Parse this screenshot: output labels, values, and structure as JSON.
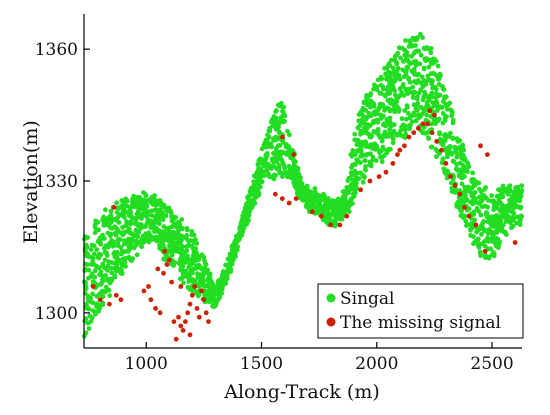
{
  "chart_data": {
    "type": "scatter",
    "title": "",
    "xlabel": "Along-Track (m)",
    "ylabel": "Elevation(m)",
    "xlim": [
      730,
      2630
    ],
    "ylim": [
      1292,
      1368
    ],
    "xticks": [
      1000,
      1500,
      2000,
      2500
    ],
    "yticks": [
      1300,
      1330,
      1360
    ],
    "xtick_labels": [
      "1000",
      "1500",
      "2000",
      "2500"
    ],
    "ytick_labels": [
      "1300",
      "1330",
      "1360"
    ],
    "grid": false,
    "legend": {
      "placement": "bottom-right",
      "entries": [
        {
          "label": "Singal",
          "color": "#22dd22"
        },
        {
          "label": "The missing signal",
          "color": "#cc2200"
        }
      ]
    },
    "series": [
      {
        "name": "Singal",
        "color": "#22dd22",
        "profile": {
          "x": [
            730,
            760,
            800,
            850,
            900,
            950,
            1000,
            1050,
            1100,
            1150,
            1200,
            1250,
            1290,
            1320,
            1360,
            1400,
            1440,
            1480,
            1500,
            1530,
            1560,
            1590,
            1620,
            1650,
            1680,
            1720,
            1760,
            1800,
            1840,
            1870,
            1900,
            1930,
            1960,
            2000,
            2040,
            2080,
            2120,
            2160,
            2200,
            2240,
            2280,
            2320,
            2360,
            2400,
            2440,
            2480,
            2520,
            2560,
            2600,
            2630
          ],
          "low": [
            1295,
            1297,
            1301,
            1305,
            1309,
            1313,
            1316,
            1315,
            1311,
            1307,
            1305,
            1303,
            1300,
            1304,
            1309,
            1315,
            1321,
            1326,
            1328,
            1331,
            1330,
            1331,
            1330,
            1328,
            1325,
            1323,
            1322,
            1320,
            1321,
            1322,
            1326,
            1329,
            1332,
            1333,
            1336,
            1339,
            1340,
            1343,
            1341,
            1337,
            1333,
            1328,
            1323,
            1318,
            1314,
            1311,
            1314,
            1318,
            1320,
            1320
          ],
          "high": [
            1318,
            1320,
            1322,
            1325,
            1326,
            1327,
            1327,
            1326,
            1324,
            1321,
            1318,
            1313,
            1306,
            1308,
            1313,
            1319,
            1326,
            1333,
            1337,
            1342,
            1347,
            1348,
            1341,
            1334,
            1330,
            1328,
            1327,
            1325,
            1326,
            1329,
            1340,
            1347,
            1350,
            1353,
            1356,
            1359,
            1362,
            1364,
            1363,
            1360,
            1354,
            1347,
            1340,
            1334,
            1330,
            1328,
            1328,
            1329,
            1329,
            1329
          ]
        }
      },
      {
        "name": "The missing signal",
        "color": "#cc2200",
        "points": [
          [
            770,
            1306
          ],
          [
            800,
            1303
          ],
          [
            840,
            1302
          ],
          [
            870,
            1304
          ],
          [
            890,
            1303
          ],
          [
            860,
            1324
          ],
          [
            990,
            1305
          ],
          [
            1020,
            1303
          ],
          [
            1040,
            1301
          ],
          [
            1060,
            1300
          ],
          [
            1075,
            1309
          ],
          [
            1090,
            1311
          ],
          [
            1100,
            1312
          ],
          [
            1080,
            1314
          ],
          [
            1110,
            1307
          ],
          [
            1120,
            1298
          ],
          [
            1140,
            1299
          ],
          [
            1150,
            1297
          ],
          [
            1160,
            1296
          ],
          [
            1170,
            1298
          ],
          [
            1180,
            1300
          ],
          [
            1190,
            1302
          ],
          [
            1200,
            1304
          ],
          [
            1210,
            1306
          ],
          [
            1220,
            1301
          ],
          [
            1230,
            1299
          ],
          [
            1240,
            1305
          ],
          [
            1250,
            1303
          ],
          [
            1260,
            1300
          ],
          [
            1270,
            1298
          ],
          [
            1130,
            1294
          ],
          [
            1190,
            1295
          ],
          [
            1050,
            1310
          ],
          [
            1010,
            1306
          ],
          [
            1150,
            1306
          ],
          [
            1560,
            1327
          ],
          [
            1590,
            1326
          ],
          [
            1620,
            1325
          ],
          [
            1650,
            1326
          ],
          [
            1590,
            1340
          ],
          [
            1640,
            1336
          ],
          [
            1720,
            1323
          ],
          [
            1760,
            1322
          ],
          [
            1800,
            1320
          ],
          [
            1840,
            1320
          ],
          [
            1870,
            1322
          ],
          [
            1930,
            1328
          ],
          [
            1970,
            1330
          ],
          [
            2010,
            1331
          ],
          [
            2040,
            1332
          ],
          [
            2070,
            1334
          ],
          [
            2090,
            1336
          ],
          [
            2100,
            1337
          ],
          [
            2120,
            1338
          ],
          [
            2140,
            1340
          ],
          [
            2160,
            1341
          ],
          [
            2180,
            1342
          ],
          [
            2200,
            1343
          ],
          [
            2220,
            1343
          ],
          [
            2240,
            1341
          ],
          [
            2260,
            1339
          ],
          [
            2280,
            1337
          ],
          [
            2300,
            1334
          ],
          [
            2320,
            1331
          ],
          [
            2340,
            1329
          ],
          [
            2360,
            1327
          ],
          [
            2380,
            1324
          ],
          [
            2400,
            1322
          ],
          [
            2430,
            1320
          ],
          [
            2470,
            1314
          ],
          [
            2230,
            1346
          ],
          [
            2250,
            1345
          ],
          [
            2450,
            1338
          ],
          [
            2480,
            1336
          ],
          [
            2600,
            1316
          ]
        ]
      }
    ]
  }
}
